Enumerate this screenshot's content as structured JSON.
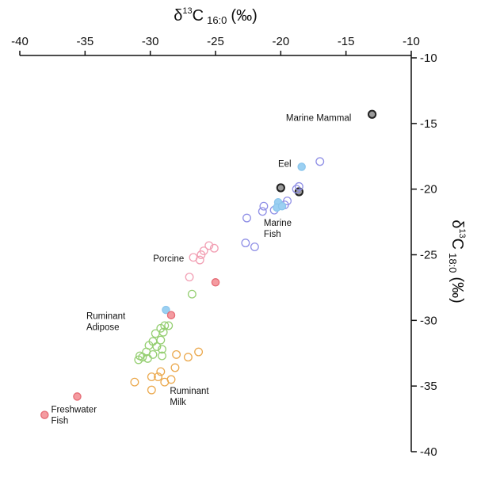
{
  "chart_data": {
    "type": "scatter",
    "title": "",
    "xlabel": {
      "main": "δ",
      "sup": "13",
      "base": "C",
      "sub": "16:0",
      "unit": "(‰)"
    },
    "ylabel": {
      "main": "δ",
      "sup": "13",
      "base": "C",
      "sub": "18:0",
      "unit": "(‰)"
    },
    "xlim": [
      -40,
      -10
    ],
    "ylim": [
      -40,
      -10
    ],
    "x_axis_position": "top",
    "y_axis_position": "right",
    "grid": false,
    "x_ticks": [
      "-40",
      "-35",
      "-30",
      "-25",
      "-20",
      "-15",
      "-10"
    ],
    "y_ticks": [
      "-10",
      "-15",
      "-20",
      "-25",
      "-30",
      "-35",
      "-40"
    ],
    "series": [
      {
        "key": "marine_mammal",
        "style": "filled",
        "stroke": "#222222",
        "fill": "#9a9a9a",
        "stroke_width": 2,
        "points": [
          [
            -13.0,
            -14.3
          ],
          [
            -20.0,
            -19.9
          ],
          [
            -18.6,
            -20.2
          ]
        ]
      },
      {
        "key": "marine_fish_open",
        "style": "open",
        "stroke": "#8f8fe6",
        "fill": "none",
        "points": [
          [
            -17.0,
            -17.9
          ],
          [
            -18.6,
            -19.8
          ],
          [
            -18.8,
            -20.0
          ],
          [
            -19.5,
            -20.9
          ],
          [
            -19.7,
            -21.2
          ],
          [
            -20.5,
            -21.6
          ],
          [
            -21.3,
            -21.3
          ],
          [
            -21.4,
            -21.7
          ],
          [
            -22.6,
            -22.2
          ],
          [
            -22.7,
            -24.1
          ],
          [
            -22.0,
            -24.4
          ]
        ]
      },
      {
        "key": "eel",
        "style": "filled",
        "stroke": "#8cc6ec",
        "fill": "#9bd0f2",
        "points": [
          [
            -18.4,
            -18.3
          ],
          [
            -20.2,
            -21.0
          ],
          [
            -20.3,
            -21.4
          ],
          [
            -19.9,
            -21.3
          ],
          [
            -28.8,
            -29.2
          ]
        ]
      },
      {
        "key": "porcine_open",
        "style": "open",
        "stroke": "#f2a0b4",
        "fill": "none",
        "points": [
          [
            -25.5,
            -24.3
          ],
          [
            -25.1,
            -24.5
          ],
          [
            -25.9,
            -24.7
          ],
          [
            -26.1,
            -25.0
          ],
          [
            -26.7,
            -25.2
          ],
          [
            -26.2,
            -25.4
          ],
          [
            -27.0,
            -26.7
          ]
        ]
      },
      {
        "key": "porcine_filled",
        "style": "filled",
        "stroke": "#e56a74",
        "fill": "#f49ba0",
        "points": [
          [
            -25.0,
            -27.1
          ],
          [
            -28.4,
            -29.6
          ],
          [
            -35.6,
            -35.8
          ],
          [
            -38.1,
            -37.2
          ]
        ]
      },
      {
        "key": "ruminant_adipose",
        "style": "open",
        "stroke": "#96cf73",
        "fill": "none",
        "points": [
          [
            -26.8,
            -28.0
          ],
          [
            -28.9,
            -30.4
          ],
          [
            -28.6,
            -30.4
          ],
          [
            -29.2,
            -30.6
          ],
          [
            -29.6,
            -31.0
          ],
          [
            -29.0,
            -30.9
          ],
          [
            -29.2,
            -31.5
          ],
          [
            -29.8,
            -31.6
          ],
          [
            -30.1,
            -31.9
          ],
          [
            -29.5,
            -32.0
          ],
          [
            -29.1,
            -32.2
          ],
          [
            -30.3,
            -32.4
          ],
          [
            -29.8,
            -32.6
          ],
          [
            -29.1,
            -32.7
          ],
          [
            -30.6,
            -32.8
          ],
          [
            -30.2,
            -32.9
          ],
          [
            -30.9,
            -33.0
          ],
          [
            -30.8,
            -32.7
          ]
        ]
      },
      {
        "key": "ruminant_milk",
        "style": "open",
        "stroke": "#eba94e",
        "fill": "none",
        "points": [
          [
            -26.3,
            -32.4
          ],
          [
            -27.1,
            -32.8
          ],
          [
            -28.0,
            -32.6
          ],
          [
            -28.1,
            -33.6
          ],
          [
            -29.2,
            -33.9
          ],
          [
            -29.4,
            -34.3
          ],
          [
            -29.9,
            -34.3
          ],
          [
            -28.4,
            -34.5
          ],
          [
            -28.9,
            -34.7
          ],
          [
            -31.2,
            -34.7
          ],
          [
            -29.9,
            -35.3
          ]
        ]
      }
    ],
    "annotations": [
      {
        "lines": [
          "Marine Mammal"
        ],
        "x": -17.1,
        "y": -14.8,
        "anchor": "middle"
      },
      {
        "lines": [
          "Eel"
        ],
        "x": -19.7,
        "y": -18.3,
        "anchor": "middle"
      },
      {
        "lines": [
          "Marine",
          "Fish"
        ],
        "x": -21.3,
        "y": -22.8,
        "anchor": "start"
      },
      {
        "lines": [
          "Porcine"
        ],
        "x": -28.6,
        "y": -25.5,
        "anchor": "middle"
      },
      {
        "lines": [
          "Ruminant",
          "Adipose"
        ],
        "x": -34.9,
        "y": -29.9,
        "anchor": "start"
      },
      {
        "lines": [
          "Ruminant",
          "Milk"
        ],
        "x": -28.5,
        "y": -35.6,
        "anchor": "start"
      },
      {
        "lines": [
          "Freshwater",
          "Fish"
        ],
        "x": -37.6,
        "y": -37.0,
        "anchor": "start"
      }
    ]
  }
}
